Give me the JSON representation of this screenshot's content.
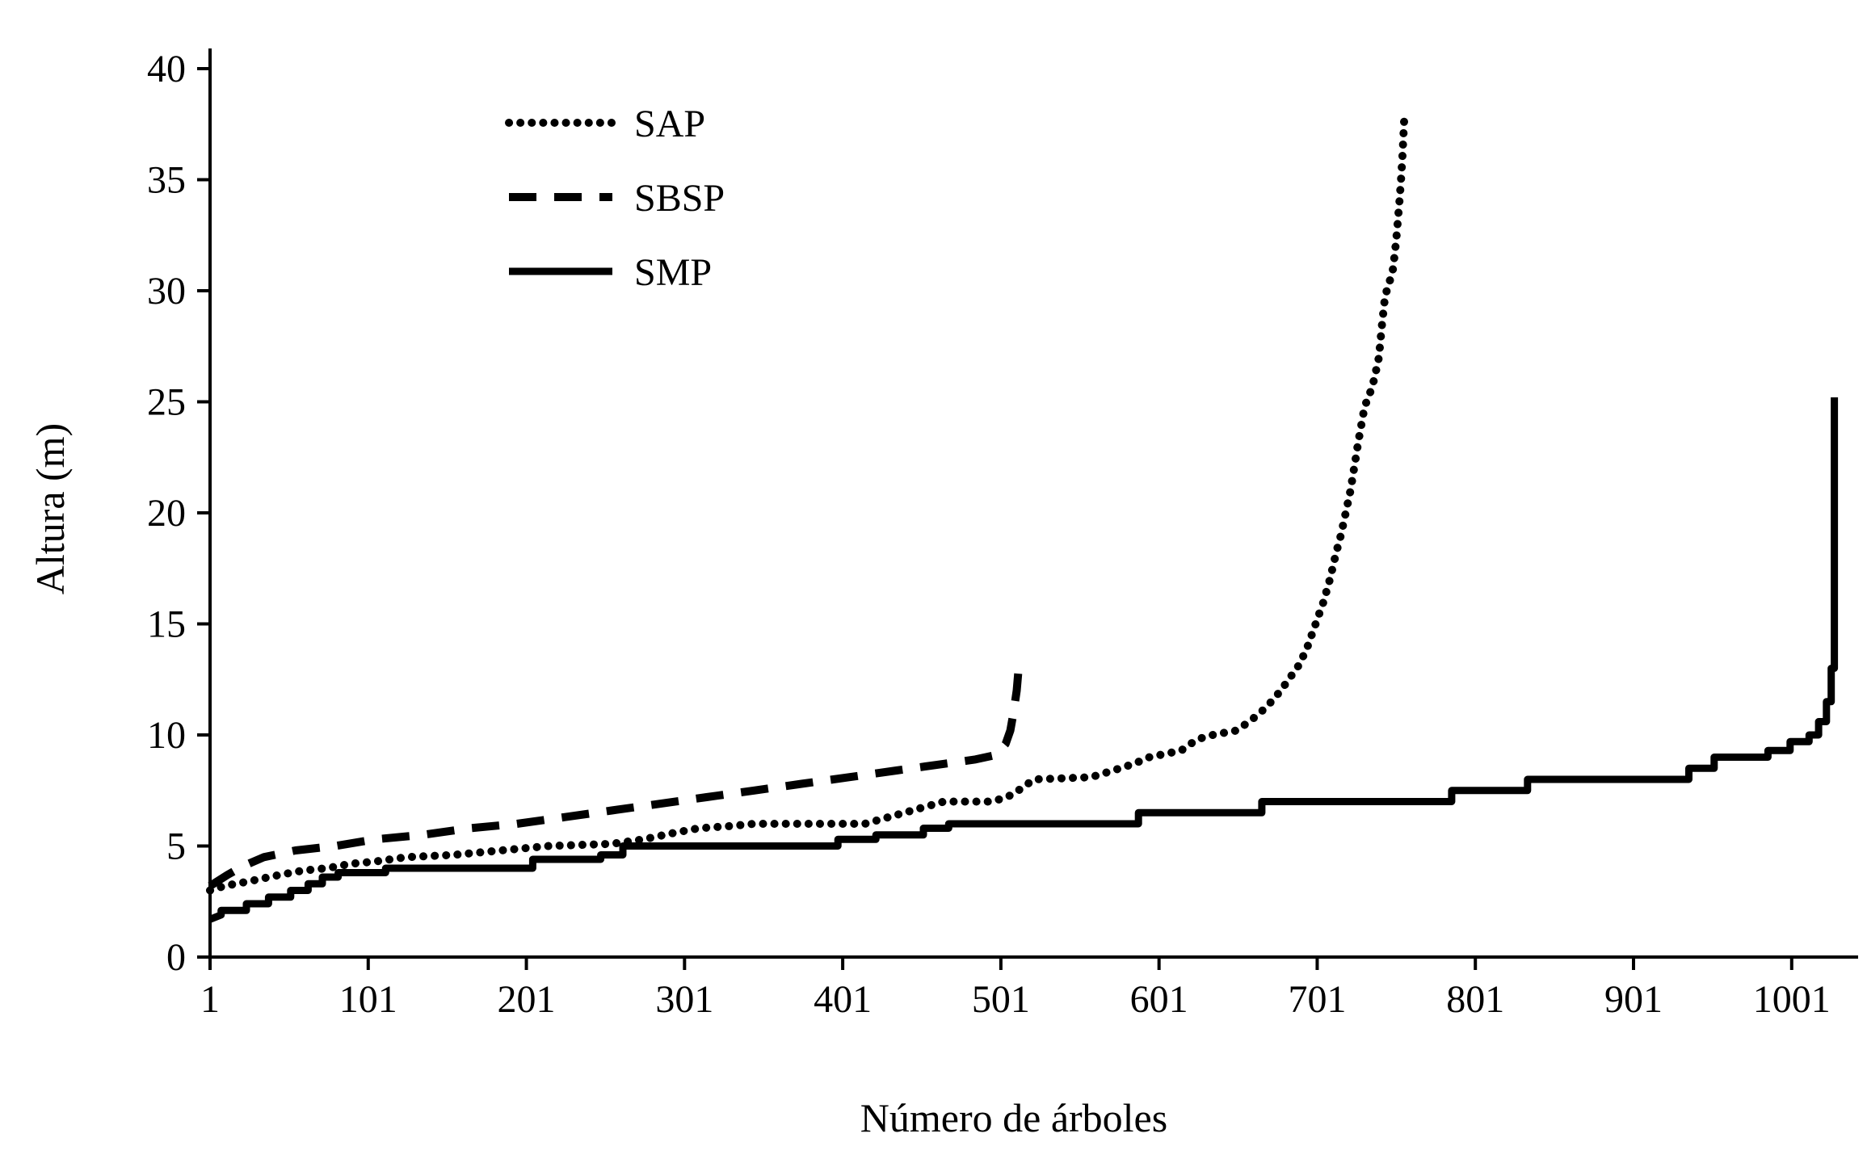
{
  "figure": {
    "background": "#ffffff",
    "ink": "#000000"
  },
  "chart_data": {
    "type": "line",
    "title": "",
    "xlabel": "Número de árboles",
    "ylabel": "Altura (m)",
    "xlim": [
      1,
      1043
    ],
    "ylim": [
      0,
      40
    ],
    "grid": false,
    "legend_position": "inside-upper-left",
    "x_tick_values": [
      1,
      101,
      201,
      301,
      401,
      501,
      601,
      701,
      801,
      901,
      1001
    ],
    "x_tick_labels": [
      "1",
      "101",
      "201",
      "301",
      "401",
      "501",
      "601",
      "701",
      "801",
      "901",
      "1001"
    ],
    "y_tick_values": [
      0,
      5,
      10,
      15,
      20,
      25,
      30,
      35,
      40
    ],
    "y_tick_labels": [
      "0",
      "5",
      "10",
      "15",
      "20",
      "25",
      "30",
      "35",
      "40"
    ],
    "series": [
      {
        "name": "SAP",
        "style": "dotted",
        "color": "#000000",
        "points": [
          [
            1,
            3.0
          ],
          [
            10,
            3.2
          ],
          [
            25,
            3.4
          ],
          [
            45,
            3.7
          ],
          [
            60,
            3.9
          ],
          [
            75,
            4.0
          ],
          [
            90,
            4.2
          ],
          [
            105,
            4.3
          ],
          [
            125,
            4.5
          ],
          [
            155,
            4.6
          ],
          [
            185,
            4.8
          ],
          [
            215,
            5.0
          ],
          [
            255,
            5.1
          ],
          [
            275,
            5.3
          ],
          [
            295,
            5.6
          ],
          [
            310,
            5.8
          ],
          [
            330,
            5.9
          ],
          [
            345,
            6.0
          ],
          [
            415,
            6.0
          ],
          [
            430,
            6.3
          ],
          [
            445,
            6.6
          ],
          [
            455,
            6.8
          ],
          [
            465,
            7.0
          ],
          [
            495,
            7.0
          ],
          [
            505,
            7.2
          ],
          [
            512,
            7.5
          ],
          [
            518,
            7.8
          ],
          [
            522,
            8.0
          ],
          [
            558,
            8.1
          ],
          [
            572,
            8.4
          ],
          [
            585,
            8.7
          ],
          [
            595,
            9.0
          ],
          [
            615,
            9.3
          ],
          [
            625,
            9.8
          ],
          [
            635,
            10.0
          ],
          [
            650,
            10.2
          ],
          [
            658,
            10.6
          ],
          [
            665,
            11.0
          ],
          [
            672,
            11.5
          ],
          [
            678,
            12.0
          ],
          [
            684,
            12.6
          ],
          [
            690,
            13.2
          ],
          [
            695,
            14.0
          ],
          [
            700,
            15.0
          ],
          [
            705,
            16.0
          ],
          [
            709,
            17.0
          ],
          [
            713,
            18.2
          ],
          [
            716,
            19.0
          ],
          [
            719,
            20.0
          ],
          [
            722,
            21.0
          ],
          [
            725,
            22.3
          ],
          [
            727,
            23.2
          ],
          [
            729,
            24.0
          ],
          [
            731,
            24.8
          ],
          [
            734,
            25.3
          ],
          [
            737,
            26.0
          ],
          [
            740,
            27.0
          ],
          [
            742,
            28.5
          ],
          [
            744,
            29.8
          ],
          [
            746,
            30.2
          ],
          [
            749,
            31.0
          ],
          [
            751,
            32.3
          ],
          [
            753,
            34.0
          ],
          [
            754,
            35.0
          ],
          [
            755,
            36.2
          ],
          [
            756,
            37.7
          ]
        ]
      },
      {
        "name": "SBSP",
        "style": "dashed",
        "color": "#000000",
        "points": [
          [
            1,
            3.2
          ],
          [
            12,
            3.7
          ],
          [
            22,
            4.1
          ],
          [
            35,
            4.5
          ],
          [
            55,
            4.8
          ],
          [
            80,
            5.0
          ],
          [
            105,
            5.3
          ],
          [
            135,
            5.5
          ],
          [
            165,
            5.8
          ],
          [
            195,
            6.0
          ],
          [
            225,
            6.3
          ],
          [
            255,
            6.6
          ],
          [
            285,
            6.9
          ],
          [
            315,
            7.2
          ],
          [
            345,
            7.5
          ],
          [
            375,
            7.8
          ],
          [
            405,
            8.1
          ],
          [
            435,
            8.4
          ],
          [
            465,
            8.7
          ],
          [
            485,
            8.9
          ],
          [
            498,
            9.1
          ],
          [
            504,
            9.6
          ],
          [
            507,
            10.2
          ],
          [
            509,
            11.0
          ],
          [
            511,
            12.0
          ],
          [
            512,
            12.8
          ],
          [
            514,
            13.0
          ]
        ]
      },
      {
        "name": "SMP",
        "style": "solid",
        "color": "#000000",
        "points": [
          [
            1,
            1.7
          ],
          [
            8,
            1.9
          ],
          [
            8,
            2.1
          ],
          [
            24,
            2.1
          ],
          [
            24,
            2.4
          ],
          [
            38,
            2.4
          ],
          [
            38,
            2.7
          ],
          [
            52,
            2.7
          ],
          [
            52,
            3.0
          ],
          [
            63,
            3.0
          ],
          [
            63,
            3.3
          ],
          [
            72,
            3.3
          ],
          [
            72,
            3.6
          ],
          [
            82,
            3.6
          ],
          [
            82,
            3.8
          ],
          [
            112,
            3.8
          ],
          [
            112,
            4.0
          ],
          [
            205,
            4.0
          ],
          [
            205,
            4.4
          ],
          [
            248,
            4.4
          ],
          [
            248,
            4.6
          ],
          [
            262,
            4.6
          ],
          [
            262,
            5.0
          ],
          [
            398,
            5.0
          ],
          [
            398,
            5.3
          ],
          [
            422,
            5.3
          ],
          [
            422,
            5.5
          ],
          [
            452,
            5.5
          ],
          [
            452,
            5.8
          ],
          [
            468,
            5.8
          ],
          [
            468,
            6.0
          ],
          [
            588,
            6.0
          ],
          [
            588,
            6.5
          ],
          [
            666,
            6.5
          ],
          [
            666,
            7.0
          ],
          [
            786,
            7.0
          ],
          [
            786,
            7.5
          ],
          [
            834,
            7.5
          ],
          [
            834,
            8.0
          ],
          [
            936,
            8.0
          ],
          [
            936,
            8.5
          ],
          [
            952,
            8.5
          ],
          [
            952,
            9.0
          ],
          [
            986,
            9.0
          ],
          [
            986,
            9.3
          ],
          [
            1000,
            9.3
          ],
          [
            1000,
            9.7
          ],
          [
            1012,
            9.7
          ],
          [
            1012,
            10.0
          ],
          [
            1018,
            10.0
          ],
          [
            1018,
            10.6
          ],
          [
            1023,
            10.6
          ],
          [
            1023,
            11.5
          ],
          [
            1026,
            11.5
          ],
          [
            1026,
            13.0
          ],
          [
            1028,
            13.0
          ],
          [
            1028,
            25.2
          ]
        ]
      }
    ]
  }
}
